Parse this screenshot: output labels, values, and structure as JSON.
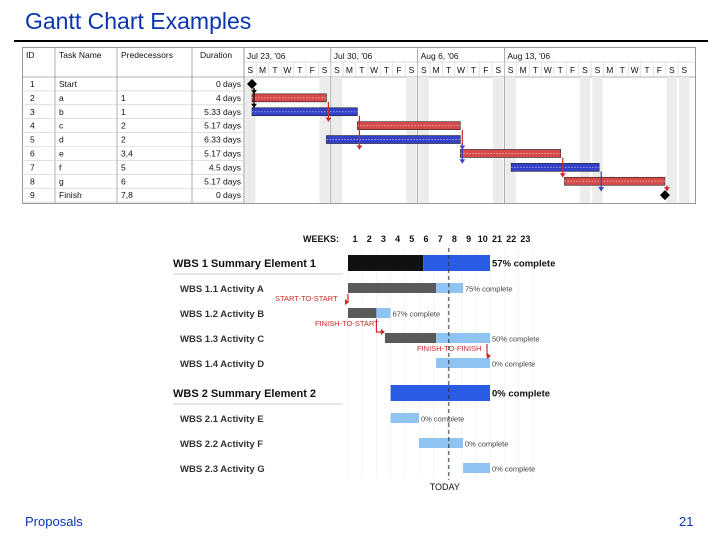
{
  "slide": {
    "title": "Gantt Chart Examples",
    "footer_left": "Proposals",
    "page_number": "21"
  },
  "colors": {
    "title": "#0b35b0",
    "red_bar": "#d64a4a",
    "blue_bar": "#3340c8",
    "summary_black": "#111111",
    "summary_blue": "#2b5ce6",
    "activity_gray": "#5a5a5a",
    "activity_light": "#8fc4f2",
    "annotation_red": "#cc2a2a"
  },
  "chart_data": [
    {
      "type": "table",
      "columns": [
        "ID",
        "Task Name",
        "Predecessors",
        "Duration"
      ],
      "weeks": [
        "Jul 23, '06",
        "Jul 30, '06",
        "Aug 6, '06",
        "Aug 13, '06"
      ],
      "days": [
        "S",
        "M",
        "T",
        "W",
        "T",
        "F",
        "S"
      ],
      "rows": [
        {
          "id": "1",
          "name": "Start",
          "pred": "",
          "duration": "0 days",
          "kind": "milestone",
          "start": 0,
          "dur": 0
        },
        {
          "id": "2",
          "name": "a",
          "pred": "1",
          "duration": "4 days",
          "kind": "red",
          "start": 0,
          "dur": 6
        },
        {
          "id": "3",
          "name": "b",
          "pred": "1",
          "duration": "5.33 days",
          "kind": "blue",
          "start": 0,
          "dur": 8.5
        },
        {
          "id": "4",
          "name": "c",
          "pred": "2",
          "duration": "5.17 days",
          "kind": "red",
          "start": 8.5,
          "dur": 8.3
        },
        {
          "id": "5",
          "name": "d",
          "pred": "2",
          "duration": "6.33 days",
          "kind": "blue",
          "start": 6,
          "dur": 10.8
        },
        {
          "id": "6",
          "name": "e",
          "pred": "3,4",
          "duration": "5.17 days",
          "kind": "red",
          "start": 16.8,
          "dur": 8.1
        },
        {
          "id": "7",
          "name": "f",
          "pred": "5",
          "duration": "4.5 days",
          "kind": "blue",
          "start": 20.9,
          "dur": 7.1
        },
        {
          "id": "8",
          "name": "g",
          "pred": "6",
          "duration": "5.17 days",
          "kind": "red",
          "start": 25.2,
          "dur": 8.1
        },
        {
          "id": "9",
          "name": "Finish",
          "pred": "7,8",
          "duration": "0 days",
          "kind": "milestone",
          "start": 33.3,
          "dur": 0
        }
      ]
    },
    {
      "type": "bar",
      "weeks_label": "WEEKS:",
      "week_numbers": [
        "1",
        "2",
        "3",
        "4",
        "5",
        "6",
        "7",
        "8",
        "9",
        "10",
        "21",
        "22",
        "23"
      ],
      "today_label": "TODAY",
      "today_week": 7.1,
      "rows": [
        {
          "label": "WBS 1 Summary Element 1",
          "summary": true,
          "start": 0,
          "done_end": 5.3,
          "end": 10,
          "note": "57% complete"
        },
        {
          "label": "WBS 1.1 Activity A",
          "summary": false,
          "start": 0,
          "done_end": 6.2,
          "end": 8.1,
          "note": "75% complete"
        },
        {
          "label": "WBS 1.2 Activity B",
          "summary": false,
          "start": 0,
          "done_end": 2,
          "end": 3,
          "note": "67% complete"
        },
        {
          "label": "WBS 1.3 Activity C",
          "summary": false,
          "start": 2.6,
          "done_end": 6.2,
          "end": 10,
          "note": "50% complete"
        },
        {
          "label": "WBS 1.4 Activity D",
          "summary": false,
          "start": 6.2,
          "done_end": 6.2,
          "end": 10,
          "note": "0% complete"
        },
        {
          "label": "WBS 2 Summary Element 2",
          "summary": true,
          "start": 3,
          "done_end": 3,
          "end": 10,
          "note": "0% complete"
        },
        {
          "label": "WBS 2.1 Activity E",
          "summary": false,
          "start": 3,
          "done_end": 3,
          "end": 5,
          "note": "0% complete"
        },
        {
          "label": "WBS 2.2 Activity F",
          "summary": false,
          "start": 5,
          "done_end": 5,
          "end": 8.1,
          "note": "0% complete"
        },
        {
          "label": "WBS 2.3 Activity G",
          "summary": false,
          "start": 8.1,
          "done_end": 8.1,
          "end": 10,
          "note": "0% complete"
        }
      ],
      "annotations": [
        {
          "text": "START-TO-START",
          "row": 2
        },
        {
          "text": "FINISH-TO-START",
          "row": 3
        },
        {
          "text": "FINISH-TO-FINISH",
          "row": 4
        }
      ]
    }
  ]
}
